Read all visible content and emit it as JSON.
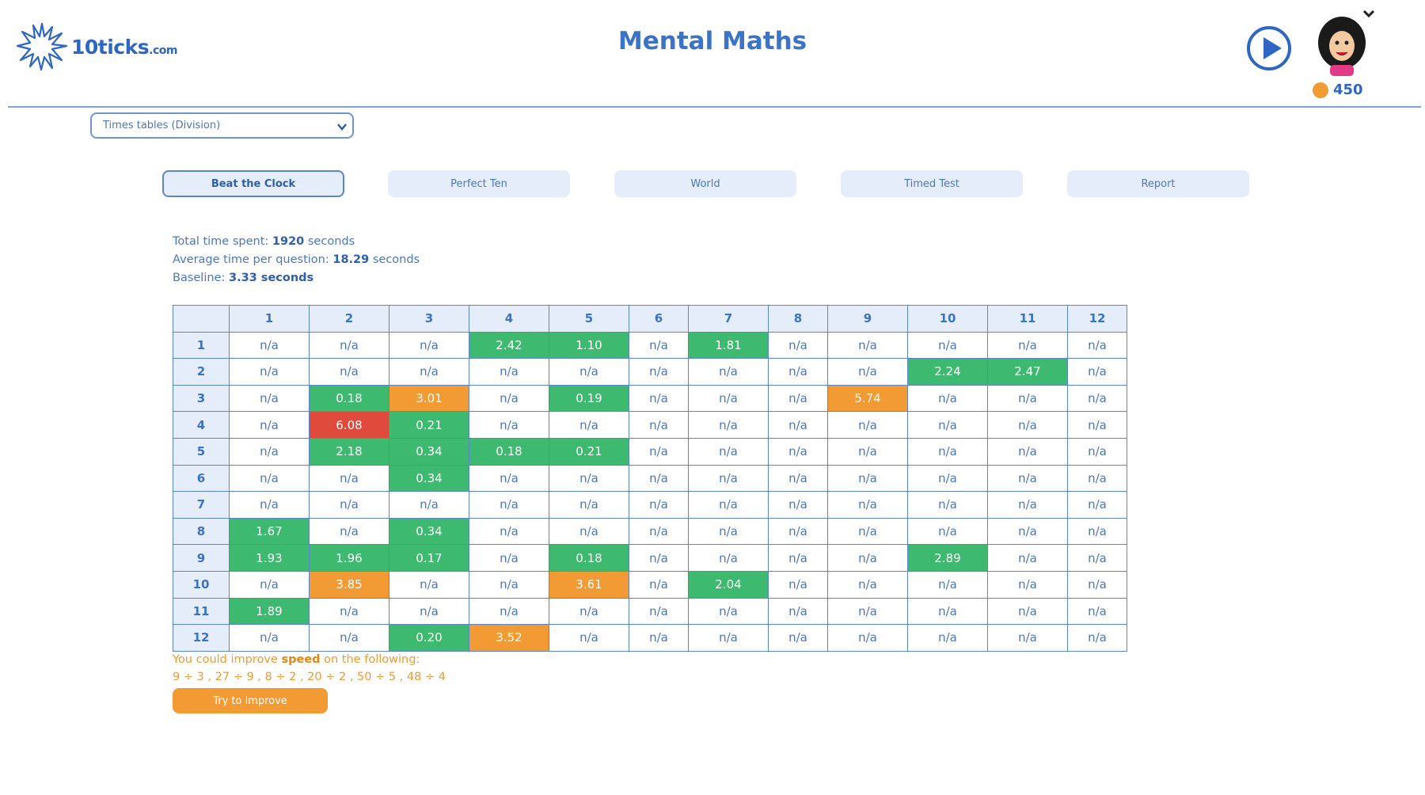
{
  "header": {
    "logo_text": "10ticks",
    "logo_suffix": ".com",
    "title": "Mental Maths",
    "coins": "450"
  },
  "icons": {
    "play": "play-circle-icon",
    "avatar": "user-avatar-icon",
    "chevron": "chevron-down-icon",
    "coin": "coin-icon",
    "logo": "sparkle-logo-icon"
  },
  "colors": {
    "brand_blue": "#3a73c8",
    "green": "#3dba6f",
    "orange": "#f29a33",
    "red": "#e04a3c",
    "tab_bg": "#e5edfa"
  },
  "selector": {
    "selected": "Times tables (Division)"
  },
  "tabs": [
    {
      "label": "Beat the Clock",
      "active": true
    },
    {
      "label": "Perfect Ten",
      "active": false
    },
    {
      "label": "World",
      "active": false
    },
    {
      "label": "Timed Test",
      "active": false
    },
    {
      "label": "Report",
      "active": false
    }
  ],
  "stats": {
    "total_label": "Total time spent:",
    "total_value": "1920",
    "total_unit": "seconds",
    "avg_label": "Average time per question:",
    "avg_value": "18.29",
    "avg_unit": "seconds",
    "baseline_label": "Baseline:",
    "baseline_value": "3.33 seconds"
  },
  "table": {
    "columns": [
      "1",
      "2",
      "3",
      "4",
      "5",
      "6",
      "7",
      "8",
      "9",
      "10",
      "11",
      "12"
    ],
    "rows": [
      {
        "label": "1",
        "cells": [
          [
            "n/a",
            ""
          ],
          [
            "n/a",
            ""
          ],
          [
            "n/a",
            ""
          ],
          [
            "2.42",
            "g"
          ],
          [
            "1.10",
            "g"
          ],
          [
            "n/a",
            ""
          ],
          [
            "1.81",
            "g"
          ],
          [
            "n/a",
            ""
          ],
          [
            "n/a",
            ""
          ],
          [
            "n/a",
            ""
          ],
          [
            "n/a",
            ""
          ],
          [
            "n/a",
            ""
          ]
        ]
      },
      {
        "label": "2",
        "cells": [
          [
            "n/a",
            ""
          ],
          [
            "n/a",
            ""
          ],
          [
            "n/a",
            ""
          ],
          [
            "n/a",
            ""
          ],
          [
            "n/a",
            ""
          ],
          [
            "n/a",
            ""
          ],
          [
            "n/a",
            ""
          ],
          [
            "n/a",
            ""
          ],
          [
            "n/a",
            ""
          ],
          [
            "2.24",
            "g"
          ],
          [
            "2.47",
            "g"
          ],
          [
            "n/a",
            ""
          ]
        ]
      },
      {
        "label": "3",
        "cells": [
          [
            "n/a",
            ""
          ],
          [
            "0.18",
            "g"
          ],
          [
            "3.01",
            "o"
          ],
          [
            "n/a",
            ""
          ],
          [
            "0.19",
            "g"
          ],
          [
            "n/a",
            ""
          ],
          [
            "n/a",
            ""
          ],
          [
            "n/a",
            ""
          ],
          [
            "5.74",
            "o"
          ],
          [
            "n/a",
            ""
          ],
          [
            "n/a",
            ""
          ],
          [
            "n/a",
            ""
          ]
        ]
      },
      {
        "label": "4",
        "cells": [
          [
            "n/a",
            ""
          ],
          [
            "6.08",
            "r"
          ],
          [
            "0.21",
            "g"
          ],
          [
            "n/a",
            ""
          ],
          [
            "n/a",
            ""
          ],
          [
            "n/a",
            ""
          ],
          [
            "n/a",
            ""
          ],
          [
            "n/a",
            ""
          ],
          [
            "n/a",
            ""
          ],
          [
            "n/a",
            ""
          ],
          [
            "n/a",
            ""
          ],
          [
            "n/a",
            ""
          ]
        ]
      },
      {
        "label": "5",
        "cells": [
          [
            "n/a",
            ""
          ],
          [
            "2.18",
            "g"
          ],
          [
            "0.34",
            "g"
          ],
          [
            "0.18",
            "g"
          ],
          [
            "0.21",
            "g"
          ],
          [
            "n/a",
            ""
          ],
          [
            "n/a",
            ""
          ],
          [
            "n/a",
            ""
          ],
          [
            "n/a",
            ""
          ],
          [
            "n/a",
            ""
          ],
          [
            "n/a",
            ""
          ],
          [
            "n/a",
            ""
          ]
        ]
      },
      {
        "label": "6",
        "cells": [
          [
            "n/a",
            ""
          ],
          [
            "n/a",
            ""
          ],
          [
            "0.34",
            "g"
          ],
          [
            "n/a",
            ""
          ],
          [
            "n/a",
            ""
          ],
          [
            "n/a",
            ""
          ],
          [
            "n/a",
            ""
          ],
          [
            "n/a",
            ""
          ],
          [
            "n/a",
            ""
          ],
          [
            "n/a",
            ""
          ],
          [
            "n/a",
            ""
          ],
          [
            "n/a",
            ""
          ]
        ]
      },
      {
        "label": "7",
        "cells": [
          [
            "n/a",
            ""
          ],
          [
            "n/a",
            ""
          ],
          [
            "n/a",
            ""
          ],
          [
            "n/a",
            ""
          ],
          [
            "n/a",
            ""
          ],
          [
            "n/a",
            ""
          ],
          [
            "n/a",
            ""
          ],
          [
            "n/a",
            ""
          ],
          [
            "n/a",
            ""
          ],
          [
            "n/a",
            ""
          ],
          [
            "n/a",
            ""
          ],
          [
            "n/a",
            ""
          ]
        ]
      },
      {
        "label": "8",
        "cells": [
          [
            "1.67",
            "g"
          ],
          [
            "n/a",
            ""
          ],
          [
            "0.34",
            "g"
          ],
          [
            "n/a",
            ""
          ],
          [
            "n/a",
            ""
          ],
          [
            "n/a",
            ""
          ],
          [
            "n/a",
            ""
          ],
          [
            "n/a",
            ""
          ],
          [
            "n/a",
            ""
          ],
          [
            "n/a",
            ""
          ],
          [
            "n/a",
            ""
          ],
          [
            "n/a",
            ""
          ]
        ]
      },
      {
        "label": "9",
        "cells": [
          [
            "1.93",
            "g"
          ],
          [
            "1.96",
            "g"
          ],
          [
            "0.17",
            "g"
          ],
          [
            "n/a",
            ""
          ],
          [
            "0.18",
            "g"
          ],
          [
            "n/a",
            ""
          ],
          [
            "n/a",
            ""
          ],
          [
            "n/a",
            ""
          ],
          [
            "n/a",
            ""
          ],
          [
            "2.89",
            "g"
          ],
          [
            "n/a",
            ""
          ],
          [
            "n/a",
            ""
          ]
        ]
      },
      {
        "label": "10",
        "cells": [
          [
            "n/a",
            ""
          ],
          [
            "3.85",
            "o"
          ],
          [
            "n/a",
            ""
          ],
          [
            "n/a",
            ""
          ],
          [
            "3.61",
            "o"
          ],
          [
            "n/a",
            ""
          ],
          [
            "2.04",
            "g"
          ],
          [
            "n/a",
            ""
          ],
          [
            "n/a",
            ""
          ],
          [
            "n/a",
            ""
          ],
          [
            "n/a",
            ""
          ],
          [
            "n/a",
            ""
          ]
        ]
      },
      {
        "label": "11",
        "cells": [
          [
            "1.89",
            "g"
          ],
          [
            "n/a",
            ""
          ],
          [
            "n/a",
            ""
          ],
          [
            "n/a",
            ""
          ],
          [
            "n/a",
            ""
          ],
          [
            "n/a",
            ""
          ],
          [
            "n/a",
            ""
          ],
          [
            "n/a",
            ""
          ],
          [
            "n/a",
            ""
          ],
          [
            "n/a",
            ""
          ],
          [
            "n/a",
            ""
          ],
          [
            "n/a",
            ""
          ]
        ]
      },
      {
        "label": "12",
        "cells": [
          [
            "n/a",
            ""
          ],
          [
            "n/a",
            ""
          ],
          [
            "0.20",
            "g"
          ],
          [
            "3.52",
            "o"
          ],
          [
            "n/a",
            ""
          ],
          [
            "n/a",
            ""
          ],
          [
            "n/a",
            ""
          ],
          [
            "n/a",
            ""
          ],
          [
            "n/a",
            ""
          ],
          [
            "n/a",
            ""
          ],
          [
            "n/a",
            ""
          ],
          [
            "n/a",
            ""
          ]
        ]
      }
    ]
  },
  "improve": {
    "prefix": "You could improve",
    "keyword": "speed",
    "suffix": "on the following:",
    "items": "9 ÷ 3 , 27 ÷ 9 , 8 ÷ 2 , 20 ÷ 2 , 50 ÷ 5 , 48 ÷ 4",
    "button_label": "Try to improve"
  }
}
